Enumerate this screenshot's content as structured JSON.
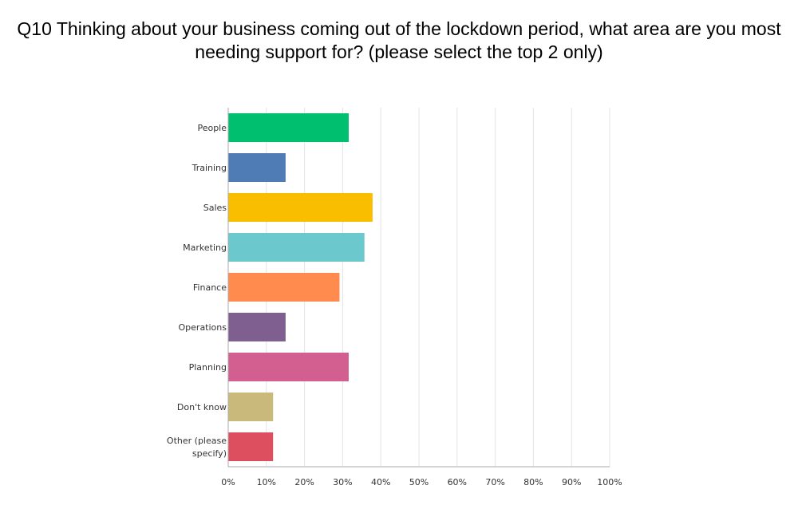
{
  "title": "Q10 Thinking about your business coming out of the lockdown period, what area are you most needing support for? (please select the top 2 only)",
  "chart_data": {
    "type": "bar",
    "orientation": "horizontal",
    "title": "Q10 Thinking about your business coming out of the lockdown period, what area are you most needing support for? (please select the top 2 only)",
    "categories": [
      {
        "lines": [
          "People"
        ]
      },
      {
        "lines": [
          "Training"
        ]
      },
      {
        "lines": [
          "Sales"
        ]
      },
      {
        "lines": [
          "Marketing"
        ]
      },
      {
        "lines": [
          "Finance"
        ]
      },
      {
        "lines": [
          "Operations"
        ]
      },
      {
        "lines": [
          "Planning"
        ]
      },
      {
        "lines": [
          "Don't know"
        ]
      },
      {
        "lines": [
          "Other (please",
          "specify)"
        ]
      }
    ],
    "values": [
      31.58,
      15.04,
      37.84,
      35.71,
      29.17,
      15.04,
      31.58,
      11.76,
      11.76
    ],
    "colors": [
      "#00bf6f",
      "#507cb6",
      "#f9be00",
      "#6bc8cd",
      "#ff8b4f",
      "#7f5f90",
      "#d25f90",
      "#c9b97a",
      "#dd4e5e"
    ],
    "xlim": [
      0,
      100
    ],
    "ticks": [
      "0%",
      "10%",
      "20%",
      "30%",
      "40%",
      "50%",
      "60%",
      "70%",
      "80%",
      "90%",
      "100%"
    ],
    "grid": true,
    "xlabel": "",
    "ylabel": ""
  }
}
